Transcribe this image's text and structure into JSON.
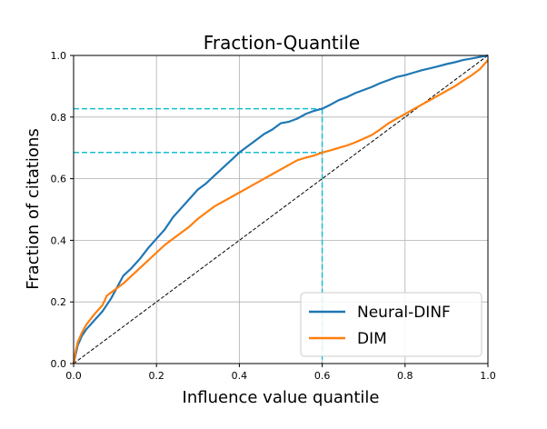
{
  "chart_data": {
    "type": "line",
    "title": "Fraction-Quantile",
    "xlabel": "Influence value quantile",
    "ylabel": "Fraction of citations",
    "xlim": [
      0,
      1
    ],
    "ylim": [
      0,
      1
    ],
    "xticks": [
      0.0,
      0.2,
      0.4,
      0.6,
      0.8,
      1.0
    ],
    "yticks": [
      0.0,
      0.2,
      0.4,
      0.6,
      0.8,
      1.0
    ],
    "xtick_labels": [
      "0.0",
      "0.2",
      "0.4",
      "0.6",
      "0.8",
      "1.0"
    ],
    "ytick_labels": [
      "0.0",
      "0.2",
      "0.4",
      "0.6",
      "0.8",
      "1.0"
    ],
    "grid": true,
    "legend_position": "bottom-right",
    "series": [
      {
        "name": "Neural-DINF",
        "color": "#1f77b4",
        "x": [
          0,
          0.005,
          0.01,
          0.02,
          0.03,
          0.05,
          0.07,
          0.09,
          0.1,
          0.12,
          0.14,
          0.16,
          0.18,
          0.2,
          0.22,
          0.24,
          0.26,
          0.28,
          0.3,
          0.32,
          0.34,
          0.36,
          0.38,
          0.4,
          0.42,
          0.44,
          0.46,
          0.48,
          0.5,
          0.52,
          0.54,
          0.56,
          0.58,
          0.6,
          0.62,
          0.64,
          0.66,
          0.68,
          0.7,
          0.72,
          0.74,
          0.76,
          0.78,
          0.8,
          0.82,
          0.84,
          0.86,
          0.88,
          0.9,
          0.92,
          0.94,
          0.96,
          0.98,
          1.0
        ],
        "y": [
          0,
          0.03,
          0.06,
          0.09,
          0.11,
          0.14,
          0.17,
          0.21,
          0.235,
          0.285,
          0.31,
          0.34,
          0.375,
          0.405,
          0.435,
          0.475,
          0.505,
          0.535,
          0.565,
          0.585,
          0.61,
          0.635,
          0.66,
          0.685,
          0.705,
          0.725,
          0.745,
          0.76,
          0.78,
          0.785,
          0.795,
          0.81,
          0.82,
          0.827,
          0.84,
          0.855,
          0.865,
          0.878,
          0.888,
          0.898,
          0.91,
          0.92,
          0.93,
          0.936,
          0.944,
          0.952,
          0.958,
          0.965,
          0.972,
          0.978,
          0.985,
          0.99,
          0.995,
          1.0
        ]
      },
      {
        "name": "DIM",
        "color": "#ff7f0e",
        "x": [
          0,
          0.005,
          0.01,
          0.02,
          0.03,
          0.05,
          0.07,
          0.08,
          0.1,
          0.12,
          0.14,
          0.16,
          0.18,
          0.2,
          0.22,
          0.24,
          0.26,
          0.28,
          0.3,
          0.32,
          0.34,
          0.36,
          0.38,
          0.4,
          0.42,
          0.44,
          0.46,
          0.48,
          0.5,
          0.52,
          0.54,
          0.56,
          0.58,
          0.6,
          0.62,
          0.64,
          0.66,
          0.68,
          0.7,
          0.72,
          0.74,
          0.76,
          0.78,
          0.8,
          0.82,
          0.84,
          0.86,
          0.88,
          0.9,
          0.92,
          0.94,
          0.96,
          0.98,
          1.0
        ],
        "y": [
          0,
          0.04,
          0.07,
          0.1,
          0.125,
          0.16,
          0.19,
          0.22,
          0.24,
          0.26,
          0.285,
          0.31,
          0.335,
          0.36,
          0.385,
          0.405,
          0.425,
          0.445,
          0.47,
          0.49,
          0.51,
          0.525,
          0.54,
          0.555,
          0.57,
          0.585,
          0.6,
          0.615,
          0.63,
          0.645,
          0.66,
          0.668,
          0.675,
          0.685,
          0.692,
          0.7,
          0.708,
          0.718,
          0.73,
          0.742,
          0.76,
          0.78,
          0.795,
          0.81,
          0.825,
          0.84,
          0.855,
          0.87,
          0.885,
          0.9,
          0.918,
          0.935,
          0.955,
          0.985
        ]
      }
    ],
    "reference_line": {
      "x": [
        0,
        1
      ],
      "y": [
        0,
        1
      ],
      "color": "#000000"
    },
    "guide_lines": {
      "color": "#17becf",
      "x": 0.6,
      "y_values": [
        0.827,
        0.685
      ]
    }
  }
}
